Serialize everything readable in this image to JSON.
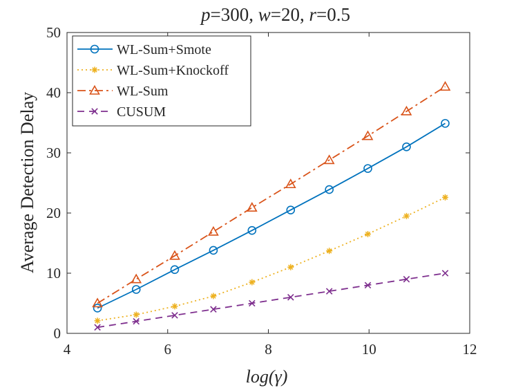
{
  "chart_data": {
    "type": "line",
    "title_parts": [
      {
        "text": "p",
        "italic": true
      },
      {
        "text": "=300, ",
        "italic": false
      },
      {
        "text": "w",
        "italic": true
      },
      {
        "text": "=20, ",
        "italic": false
      },
      {
        "text": "r",
        "italic": true
      },
      {
        "text": "=0.5",
        "italic": false
      }
    ],
    "xlabel": "log(γ)",
    "ylabel": "Average Detection Delay",
    "xlim": [
      4,
      12
    ],
    "ylim": [
      0,
      50
    ],
    "xticks": [
      4,
      6,
      8,
      10,
      12
    ],
    "yticks": [
      0,
      10,
      20,
      30,
      40,
      50
    ],
    "grid": false,
    "legend_position": "top-left",
    "x": [
      4.605,
      5.375,
      6.14,
      6.908,
      7.675,
      8.443,
      9.21,
      9.976,
      10.744,
      11.513
    ],
    "series": [
      {
        "name": "WL-Sum+Smote",
        "color": "#0072BD",
        "dash": "",
        "marker": "circle",
        "values": [
          4.2,
          7.3,
          10.6,
          13.8,
          17.1,
          20.5,
          23.9,
          27.4,
          31.0,
          34.9
        ]
      },
      {
        "name": "WL-Sum+Knockoff",
        "color": "#EDB120",
        "dash": "2,4",
        "marker": "asterisk",
        "values": [
          2.1,
          3.1,
          4.5,
          6.2,
          8.5,
          11.0,
          13.7,
          16.5,
          19.5,
          22.6
        ]
      },
      {
        "name": "WL-Sum",
        "color": "#D95319",
        "dash": "12,5,3,5",
        "marker": "triangle",
        "values": [
          5.0,
          9.0,
          12.9,
          16.9,
          20.9,
          24.8,
          28.8,
          32.8,
          36.9,
          41.0
        ]
      },
      {
        "name": "CUSUM",
        "color": "#7E2F8E",
        "dash": "10,7",
        "marker": "x",
        "values": [
          1.0,
          2.0,
          3.0,
          4.0,
          5.0,
          6.0,
          7.0,
          8.0,
          9.0,
          10.0
        ]
      }
    ]
  }
}
